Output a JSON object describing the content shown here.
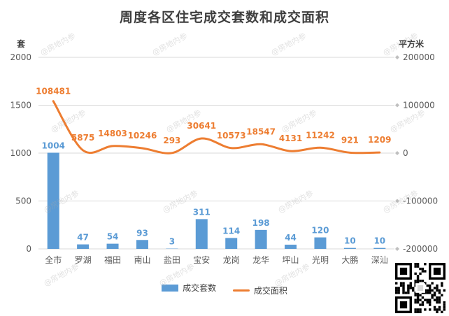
{
  "title": "周度各区住宅成交套数和成交面积",
  "left_unit": "套",
  "right_unit": "平方米",
  "watermark_text": "@房地内参",
  "colors": {
    "bar": "#5b9bd5",
    "line": "#ed7d31",
    "grid": "#d9d9d9",
    "axis_text": "#595959"
  },
  "chart_data": {
    "type": "bar",
    "title": "周度各区住宅成交套数和成交面积",
    "categories": [
      "全市",
      "罗湖",
      "福田",
      "南山",
      "盐田",
      "宝安",
      "龙岗",
      "龙华",
      "坪山",
      "光明",
      "大鹏",
      "深汕"
    ],
    "series": [
      {
        "name": "成交套数",
        "type": "bar",
        "axis": "left",
        "values": [
          1004,
          47,
          54,
          93,
          3,
          311,
          114,
          198,
          44,
          120,
          10,
          10
        ]
      },
      {
        "name": "成交面积",
        "type": "line",
        "axis": "right",
        "values": [
          108481,
          5875,
          14803,
          10246,
          293,
          30641,
          10573,
          18547,
          4131,
          11242,
          921,
          1209
        ]
      }
    ],
    "left_axis": {
      "label": "套",
      "ylim": [
        0,
        2000
      ],
      "ticks": [
        0,
        500,
        1000,
        1500,
        2000
      ]
    },
    "right_axis": {
      "label": "平方米",
      "ylim": [
        -200000,
        200000
      ],
      "ticks": [
        -200000,
        -100000,
        0,
        100000,
        200000
      ]
    },
    "grid": true,
    "legend": "bottom"
  }
}
